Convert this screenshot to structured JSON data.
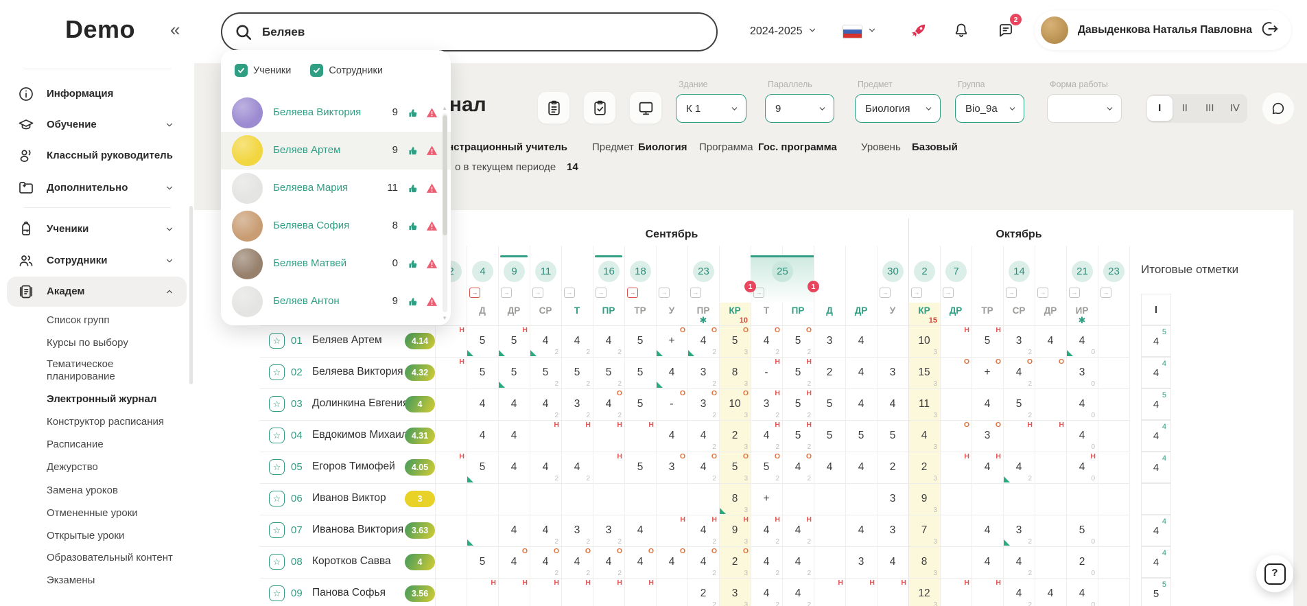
{
  "colors": {
    "accent": "#2f9e83",
    "yellow_col": "#fcf8db",
    "absence_red": "#e25552",
    "oral_orange": "#e4703a",
    "badge_red": "#e8455e",
    "date_bg": "#dceee8"
  },
  "sidebar": {
    "logo": "Demo",
    "collapse_icon": "«",
    "items": [
      {
        "label": "Информация",
        "icon": "info",
        "chevron": null,
        "active": false
      },
      {
        "label": "Обучение",
        "icon": "education",
        "chevron": "down",
        "active": false
      },
      {
        "label": "Классный руководитель",
        "icon": "teacher",
        "chevron": null,
        "active": false
      },
      {
        "label": "Дополнительно",
        "icon": "folder-plus",
        "chevron": "down",
        "active": false,
        "divider_after": true
      },
      {
        "label": "Ученики",
        "icon": "backpack",
        "chevron": "down",
        "active": false
      },
      {
        "label": "Сотрудники",
        "icon": "people",
        "chevron": "down",
        "active": false
      },
      {
        "label": "Академ",
        "icon": "journal",
        "chevron": "up",
        "active": true
      }
    ],
    "submenu": [
      {
        "label": "Список групп"
      },
      {
        "label": "Курсы по выбору"
      },
      {
        "label": "Тематическое планирование",
        "two_line": true
      },
      {
        "label": "Электронный журнал",
        "active": true
      },
      {
        "label": "Конструктор расписания"
      },
      {
        "label": "Расписание"
      },
      {
        "label": "Дежурство"
      },
      {
        "label": "Замена уроков"
      },
      {
        "label": "Отмененные уроки"
      },
      {
        "label": "Открытые уроки"
      },
      {
        "label": "Образовательный контент"
      },
      {
        "label": "Экзамены"
      }
    ]
  },
  "topbar": {
    "search_value": "Беляев",
    "year": "2024-2025",
    "notifications_badge": "2",
    "user_name": "Давыденкова Наталья Павловна"
  },
  "search_dropdown": {
    "filters": [
      {
        "label": "Ученики",
        "checked": true
      },
      {
        "label": "Сотрудники",
        "checked": true
      }
    ],
    "results": [
      {
        "name": "Беляева Виктория",
        "count": "9",
        "avatar": "#9c8bd1",
        "highlighted": false
      },
      {
        "name": "Беляев Артем",
        "count": "9",
        "avatar": "#f2d640",
        "highlighted": true
      },
      {
        "name": "Беляева Мария",
        "count": "11",
        "avatar": "#e4e4e2",
        "highlighted": false
      },
      {
        "name": "Беляева София",
        "count": "8",
        "avatar": "#c99d74",
        "highlighted": false
      },
      {
        "name": "Беляев Матвей",
        "count": "0",
        "avatar": "#97816d",
        "highlighted": false
      },
      {
        "name": "Беляев Антон",
        "count": "9",
        "avatar": "#e4e4e2",
        "highlighted": false
      }
    ]
  },
  "page": {
    "title": "Электронный журнал",
    "filters": [
      {
        "label": "Здание",
        "value": "К 1"
      },
      {
        "label": "Параллель",
        "value": "9"
      },
      {
        "label": "Предмет",
        "value": "Биология"
      },
      {
        "label": "Группа",
        "value": "Bio_9a"
      },
      {
        "label": "Форма работы",
        "value": ""
      }
    ],
    "quarters": [
      "I",
      "II",
      "III",
      "IV"
    ],
    "active_quarter": "I",
    "info": {
      "teacher": "Демонстрационный учитель",
      "subject_label": "Предмет",
      "subject": "Биология",
      "program_label": "Программа",
      "program": "Гос. программа",
      "level_label": "Уровень",
      "level": "Базовый",
      "period_label": "о в текущем периоде",
      "period_value": "14"
    }
  },
  "journal": {
    "final_title": "Итоговые отметки",
    "final_header": "I",
    "months": [
      {
        "name": "Сентябрь",
        "cols": 15
      },
      {
        "name": "Октябрь",
        "cols": 7
      }
    ],
    "columns": [
      {
        "date": "2",
        "type": "",
        "exp": "g"
      },
      {
        "date": "4",
        "type": "Д",
        "exp": "r"
      },
      {
        "date": "9",
        "type": "ДР",
        "topline": true,
        "exp": "g"
      },
      {
        "date": "11",
        "type": "СР",
        "exp": "g"
      },
      {
        "date": "",
        "type": "Т",
        "teal": true,
        "exp": "g"
      },
      {
        "date": "16",
        "type": "ПР",
        "teal": true,
        "topline": true,
        "exp": "g"
      },
      {
        "date": "18",
        "type": "ТР",
        "exp": "r"
      },
      {
        "date": "",
        "type": "У",
        "exp": "g"
      },
      {
        "date": "23",
        "type": "ПР",
        "star": true,
        "exp": "g"
      },
      {
        "date": "",
        "type": "КР",
        "teal": true,
        "yellow": true,
        "max": "10",
        "badge": "1"
      },
      {
        "date": "25",
        "type": "Т",
        "selected": true,
        "exp": "g"
      },
      {
        "date": "",
        "type": "ПР",
        "teal": true,
        "badge": "1"
      },
      {
        "date": "",
        "type": "Д",
        "teal": true
      },
      {
        "date": "",
        "type": "ДР",
        "teal": true
      },
      {
        "date": "30",
        "type": "У",
        "exp": "g"
      },
      {
        "date": "2",
        "type": "КР",
        "teal": true,
        "yellow": true,
        "max": "15",
        "exp": "g"
      },
      {
        "date": "7",
        "type": "ДР",
        "teal": true,
        "exp": "g"
      },
      {
        "date": "",
        "type": "ТР"
      },
      {
        "date": "14",
        "type": "СР",
        "exp": "g"
      },
      {
        "date": "",
        "type": "ДР",
        "exp": "g"
      },
      {
        "date": "21",
        "type": "ИР",
        "star": true,
        "exp": "g"
      },
      {
        "date": "23",
        "type": "",
        "exp": "g"
      }
    ],
    "students": [
      {
        "num": "01",
        "name": "Беляев Артем",
        "avg": "4.14",
        "avg_style": "grad",
        "final": {
          "g": "4",
          "s": "5"
        },
        "grades": [
          {
            "s": "Н"
          },
          {
            "g": "5",
            "f": 1
          },
          {
            "g": "5",
            "s": "Н",
            "f": 1
          },
          {
            "g": "4",
            "w": "2",
            "f": 1
          },
          {
            "g": "4",
            "w": "2"
          },
          {
            "g": "4",
            "w": "2"
          },
          {
            "g": "5"
          },
          {
            "g": "+",
            "s": "О",
            "f": 1
          },
          {
            "g": "4",
            "w": "2",
            "s": "О",
            "f": 1
          },
          {
            "g": "5",
            "w": "3",
            "s": "О"
          },
          {
            "g": "4",
            "w": "2",
            "s": "О"
          },
          {
            "g": "5",
            "w": "2",
            "s": "О"
          },
          {
            "g": "3"
          },
          {
            "g": "4"
          },
          null,
          {
            "g": "10",
            "w": "3"
          },
          {
            "s": "Н"
          },
          {
            "g": "5",
            "s": "Н"
          },
          {
            "g": "3",
            "w": "2"
          },
          {
            "g": "4"
          },
          {
            "g": "4",
            "w": "0",
            "f": 1
          },
          null
        ]
      },
      {
        "num": "02",
        "name": "Беляева Виктория",
        "avg": "4.32",
        "avg_style": "grad",
        "final": {
          "g": "4",
          "s": "4"
        },
        "grades": [
          {
            "s": "Н"
          },
          {
            "g": "5"
          },
          {
            "g": "5",
            "f": 1
          },
          {
            "g": "5",
            "w": "2"
          },
          {
            "g": "5",
            "w": "2"
          },
          {
            "g": "5",
            "w": "2"
          },
          {
            "g": "5"
          },
          {
            "g": "4",
            "f": 1
          },
          {
            "g": "3",
            "w": "2"
          },
          {
            "g": "8",
            "w": "3"
          },
          {
            "g": "-",
            "s": "Н"
          },
          {
            "g": "5",
            "w": "2",
            "s": "Н"
          },
          {
            "g": "2"
          },
          {
            "g": "4"
          },
          {
            "g": "3"
          },
          {
            "g": "15",
            "w": "3"
          },
          {
            "s": "О"
          },
          {
            "g": "+",
            "s": "О"
          },
          {
            "g": "4",
            "w": "2",
            "s": "О"
          },
          {
            "s": "О"
          },
          {
            "g": "3",
            "w": "0"
          },
          null
        ]
      },
      {
        "num": "03",
        "name": "Долинкина Евгения",
        "avg": "4",
        "avg_style": "grad",
        "final": {
          "g": "4",
          "s": "5"
        },
        "grades": [
          null,
          {
            "g": "4"
          },
          {
            "g": "4"
          },
          {
            "g": "4",
            "w": "2"
          },
          {
            "g": "3",
            "w": "2"
          },
          {
            "g": "4",
            "w": "2",
            "s": "О"
          },
          {
            "g": "5"
          },
          {
            "g": "-",
            "s": "О"
          },
          {
            "g": "3",
            "w": "2",
            "s": "О"
          },
          {
            "g": "10",
            "w": "3",
            "s": "О"
          },
          {
            "g": "3",
            "w": "2",
            "s": "Н"
          },
          {
            "g": "5",
            "w": "2",
            "s": "Н"
          },
          {
            "g": "5"
          },
          {
            "g": "4"
          },
          {
            "g": "4"
          },
          {
            "g": "11",
            "w": "3"
          },
          null,
          {
            "g": "4"
          },
          {
            "g": "5",
            "w": "2"
          },
          null,
          {
            "g": "4",
            "w": "0"
          },
          null
        ]
      },
      {
        "num": "04",
        "name": "Евдокимов Михаил",
        "avg": "4.31",
        "avg_style": "grad",
        "final": {
          "g": "4",
          "s": "4"
        },
        "grades": [
          null,
          {
            "g": "4"
          },
          {
            "g": "4"
          },
          {
            "s": "Н"
          },
          {
            "s": "Н"
          },
          {
            "s": "Н"
          },
          {
            "s": "Н"
          },
          {
            "g": "4"
          },
          {
            "g": "4",
            "w": "2"
          },
          {
            "g": "2",
            "w": "3"
          },
          {
            "g": "4",
            "w": "2",
            "s": "Н"
          },
          {
            "g": "5",
            "w": "2",
            "s": "Н"
          },
          {
            "g": "5"
          },
          {
            "g": "5"
          },
          {
            "g": "5"
          },
          {
            "g": "4",
            "w": "3"
          },
          {
            "s": "О"
          },
          {
            "g": "3",
            "s": "О"
          },
          {
            "s": "Н"
          },
          {
            "s": "Н"
          },
          {
            "g": "4",
            "w": "0"
          },
          null
        ]
      },
      {
        "num": "05",
        "name": "Егоров Тимофей",
        "avg": "4.05",
        "avg_style": "grad",
        "final": {
          "g": "4",
          "s": "4"
        },
        "grades": [
          {
            "s": "Н"
          },
          {
            "g": "5",
            "f": 1
          },
          {
            "g": "4"
          },
          {
            "g": "4",
            "w": "2"
          },
          {
            "g": "4",
            "w": "2"
          },
          {
            "s": "Н"
          },
          {
            "g": "5"
          },
          {
            "g": "3",
            "s": "О"
          },
          {
            "g": "4",
            "w": "2",
            "s": "О"
          },
          {
            "g": "5",
            "w": "3",
            "s": "О"
          },
          {
            "g": "5",
            "w": "2",
            "s": "О"
          },
          {
            "g": "4",
            "w": "2",
            "s": "О"
          },
          {
            "g": "4"
          },
          {
            "g": "4"
          },
          {
            "g": "2"
          },
          {
            "g": "2",
            "w": "3"
          },
          {
            "s": "Н"
          },
          {
            "g": "4",
            "s": "Н"
          },
          {
            "g": "4",
            "w": "2",
            "f": 1
          },
          null,
          {
            "g": "4",
            "w": "0",
            "s": "Н"
          },
          null
        ]
      },
      {
        "num": "06",
        "name": "Иванов Виктор",
        "avg": "3",
        "avg_style": "yellow",
        "final": null,
        "grades": [
          null,
          null,
          null,
          null,
          null,
          null,
          null,
          null,
          null,
          {
            "g": "8",
            "w": "3",
            "f": 1
          },
          {
            "g": "+"
          },
          null,
          null,
          null,
          {
            "g": "3"
          },
          {
            "g": "9",
            "w": "3"
          },
          null,
          null,
          null,
          null,
          null,
          null
        ]
      },
      {
        "num": "07",
        "name": "Иванова Виктория",
        "avg": "3.63",
        "avg_style": "grad",
        "final": {
          "g": "4",
          "s": "4"
        },
        "grades": [
          null,
          {
            "f": 1
          },
          {
            "g": "4"
          },
          {
            "g": "4",
            "w": "2"
          },
          {
            "g": "3",
            "w": "2"
          },
          {
            "g": "3",
            "w": "2"
          },
          {
            "g": "4"
          },
          {
            "s": "Н"
          },
          {
            "g": "4",
            "w": "2",
            "s": "Н"
          },
          {
            "g": "9",
            "w": "3",
            "s": "Н"
          },
          {
            "g": "4",
            "w": "2",
            "s": "Н"
          },
          {
            "g": "4",
            "w": "2",
            "s": "Н"
          },
          null,
          {
            "g": "4"
          },
          {
            "g": "3"
          },
          {
            "g": "7",
            "w": "3"
          },
          null,
          {
            "g": "4"
          },
          {
            "g": "3",
            "w": "2",
            "f": 1
          },
          null,
          {
            "g": "5",
            "w": "0"
          },
          null
        ]
      },
      {
        "num": "08",
        "name": "Коротков Савва",
        "avg": "4",
        "avg_style": "grad",
        "final": {
          "g": "4",
          "s": "4"
        },
        "grades": [
          null,
          {
            "g": "5"
          },
          {
            "g": "4",
            "s": "О"
          },
          {
            "g": "4",
            "w": "2",
            "s": "О"
          },
          {
            "g": "4",
            "w": "2",
            "s": "О"
          },
          {
            "g": "4",
            "w": "2",
            "s": "О"
          },
          {
            "g": "4",
            "s": "О"
          },
          {
            "g": "4",
            "s": "О"
          },
          {
            "g": "4",
            "w": "2",
            "s": "О"
          },
          {
            "g": "2",
            "w": "3",
            "s": "О"
          },
          {
            "g": "4",
            "w": "2"
          },
          {
            "g": "4",
            "w": "2"
          },
          null,
          {
            "g": "3"
          },
          {
            "g": "4"
          },
          {
            "g": "8",
            "w": "3"
          },
          null,
          {
            "g": "4"
          },
          {
            "g": "4",
            "w": "2"
          },
          null,
          {
            "g": "2",
            "w": "0"
          },
          null
        ]
      },
      {
        "num": "09",
        "name": "Панова Софья",
        "avg": "3.56",
        "avg_style": "grad",
        "final": {
          "g": "5",
          "s": "5"
        },
        "grades": [
          null,
          {
            "s": "Н"
          },
          {
            "s": "Н"
          },
          {
            "s": "Н"
          },
          {
            "s": "Н"
          },
          {
            "s": "Н"
          },
          {
            "s": "Н"
          },
          null,
          {
            "g": "2",
            "w": "2"
          },
          {
            "g": "3",
            "w": "3"
          },
          {
            "g": "4",
            "w": "2"
          },
          {
            "g": "4",
            "w": "2"
          },
          {
            "s": "Н"
          },
          {
            "s": "Н"
          },
          {
            "s": "Н"
          },
          {
            "g": "12",
            "w": "3"
          },
          {
            "s": "Н"
          },
          {
            "s": "Н"
          },
          {
            "g": "4",
            "w": "2"
          },
          {
            "g": "4"
          },
          {
            "g": "4",
            "w": "0"
          },
          null
        ]
      }
    ]
  }
}
